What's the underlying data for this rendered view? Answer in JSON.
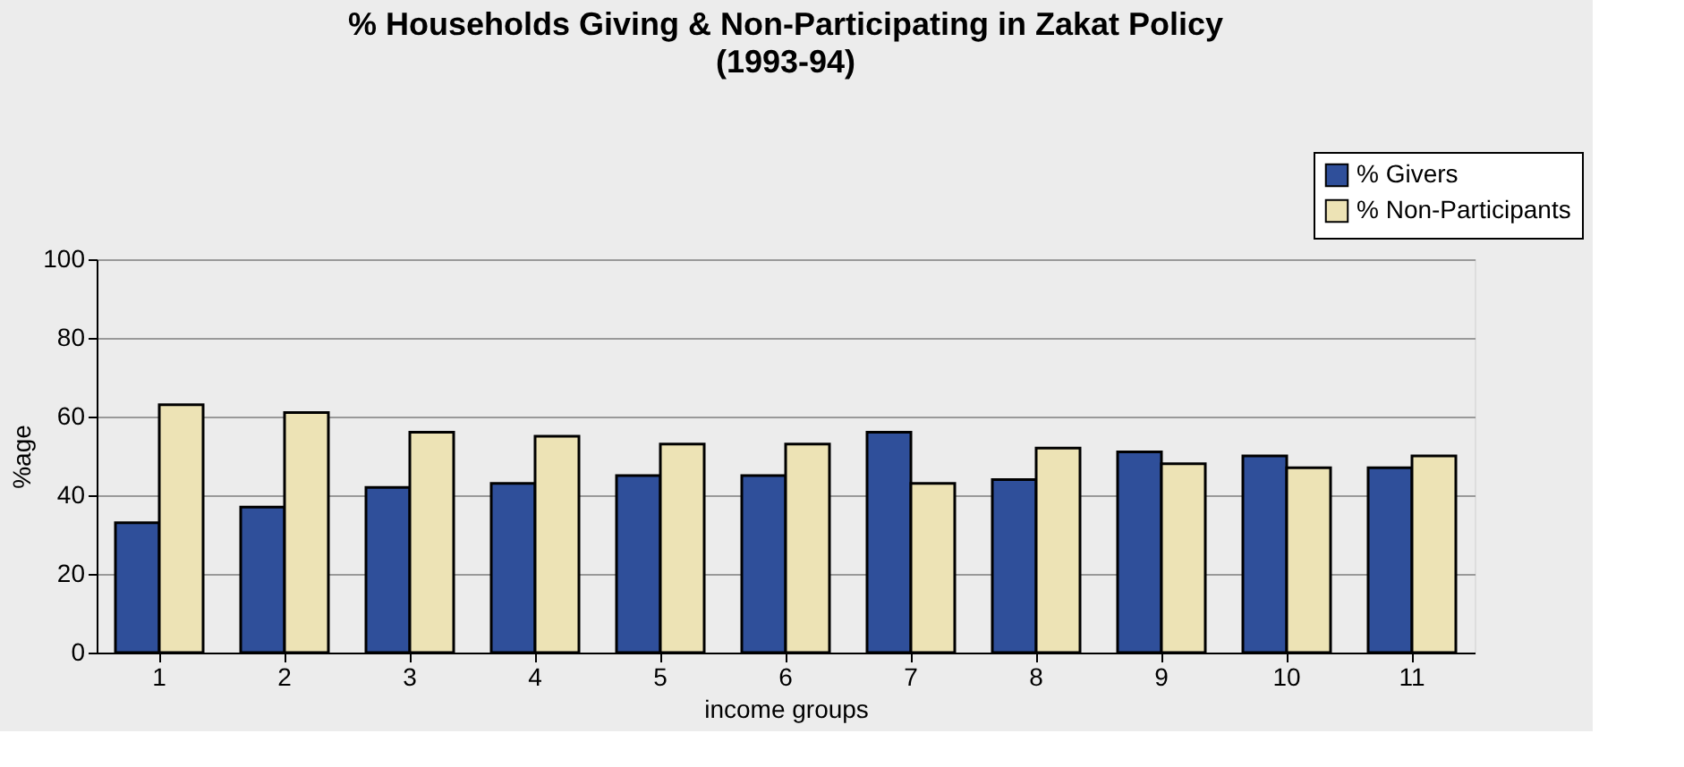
{
  "chart_data": {
    "type": "bar",
    "title": "% Households Giving & Non-Participating in Zakat Policy",
    "subtitle": "(1993-94)",
    "xlabel": "income groups",
    "ylabel": "%age",
    "categories": [
      "1",
      "2",
      "3",
      "4",
      "5",
      "6",
      "7",
      "8",
      "9",
      "10",
      "11"
    ],
    "series": [
      {
        "name": "% Givers",
        "color": "#2f4f9a",
        "values": [
          33,
          37,
          42,
          43,
          45,
          45,
          56,
          44,
          51,
          50,
          47
        ]
      },
      {
        "name": "% Non-Participants",
        "color": "#ede3b5",
        "values": [
          63,
          61,
          56,
          55,
          53,
          53,
          43,
          52,
          48,
          47,
          50
        ]
      }
    ],
    "ylim": [
      0,
      100
    ],
    "yticks": [
      0,
      20,
      40,
      60,
      80,
      100
    ],
    "grid": "y",
    "legend": "top right"
  }
}
